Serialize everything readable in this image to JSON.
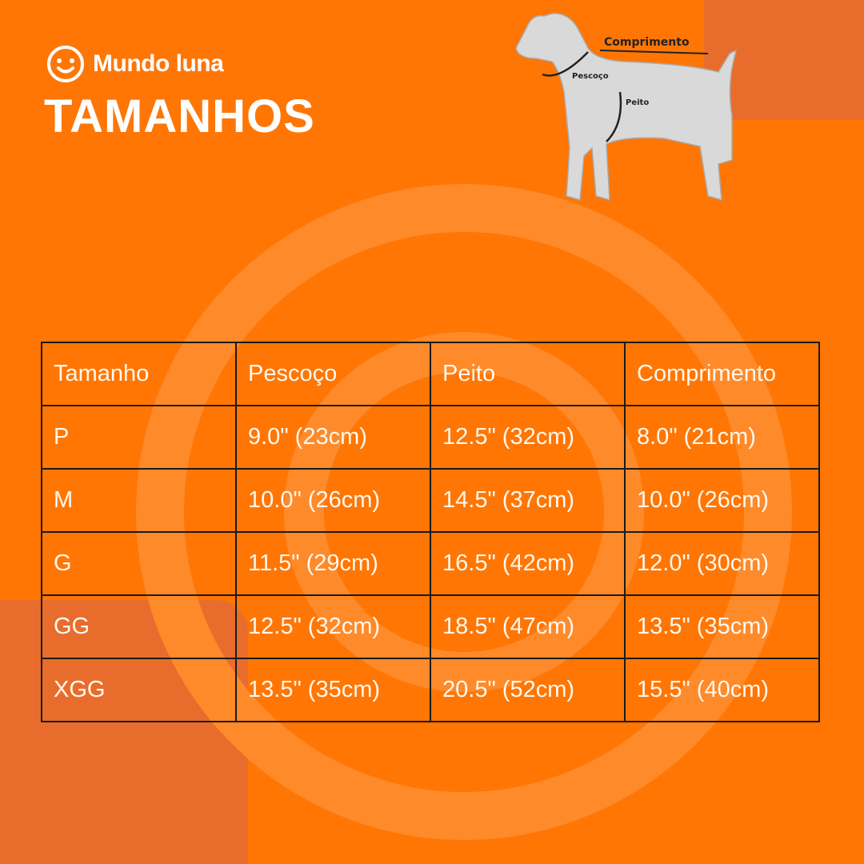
{
  "header": {
    "brand": "Mundo luna",
    "title": "TAMANHOS"
  },
  "diagram": {
    "labels": [
      "Comprimento",
      "Pescoço",
      "Peito"
    ]
  },
  "table": {
    "columns": [
      "Tamanho",
      "Pescoço",
      "Peito",
      "Comprimento"
    ],
    "rows": [
      [
        "P",
        "9.0\" (23cm)",
        "12.5\" (32cm)",
        "8.0\" (21cm)"
      ],
      [
        "M",
        "10.0\" (26cm)",
        "14.5\" (37cm)",
        "10.0\" (26cm)"
      ],
      [
        "G",
        "11.5\" (29cm)",
        "16.5\" (42cm)",
        "12.0\" (30cm)"
      ],
      [
        "GG",
        "12.5\" (32cm)",
        "18.5\" (47cm)",
        "13.5\" (35cm)"
      ],
      [
        "XGG",
        "13.5\" (35cm)",
        "20.5\" (52cm)",
        "15.5\" (40cm)"
      ]
    ]
  }
}
